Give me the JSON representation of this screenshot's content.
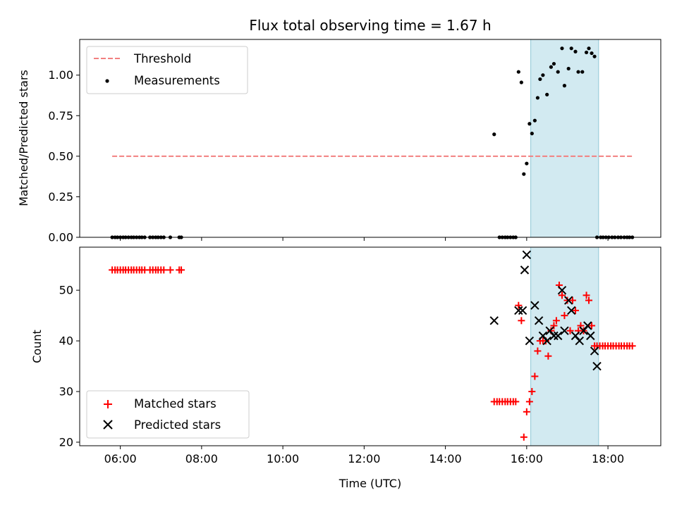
{
  "chart_data": [
    {
      "panel": "top",
      "type": "scatter",
      "title": "Flux total observing time = 1.67 h",
      "ylabel": "Matched/Predicted stars",
      "ylim": [
        0,
        1.22
      ],
      "yticks": [
        "0.00",
        "0.25",
        "0.50",
        "0.75",
        "1.00"
      ],
      "ytick_values": [
        0,
        0.25,
        0.5,
        0.75,
        1.0
      ],
      "threshold": {
        "name": "Threshold",
        "value": 0.5,
        "x_start": 5.8,
        "x_end": 18.6,
        "color": "#f28080"
      },
      "shaded_span": {
        "x_start": 16.1,
        "x_end": 17.77,
        "color": "#add8e6"
      },
      "legend": [
        "Threshold",
        "Measurements"
      ],
      "legend_placement": "upper-left",
      "series": [
        {
          "name": "Measurements",
          "color": "#000000",
          "x": [
            5.8,
            5.87,
            5.93,
            6.0,
            6.07,
            6.13,
            6.2,
            6.27,
            6.33,
            6.4,
            6.47,
            6.53,
            6.6,
            6.73,
            6.8,
            6.87,
            6.93,
            7.0,
            7.07,
            7.23,
            7.45,
            7.5,
            15.2,
            15.33,
            15.4,
            15.47,
            15.53,
            15.6,
            15.67,
            15.73,
            15.8,
            15.87,
            15.93,
            16.0,
            16.07,
            16.13,
            16.2,
            16.27,
            16.33,
            16.4,
            16.5,
            16.6,
            16.67,
            16.77,
            16.87,
            16.93,
            17.03,
            17.1,
            17.2,
            17.27,
            17.37,
            17.47,
            17.53,
            17.6,
            17.67,
            17.73,
            17.82,
            17.88,
            17.95,
            18.02,
            18.1,
            18.17,
            18.25,
            18.32,
            18.4,
            18.47,
            18.53,
            18.6
          ],
          "y": [
            0,
            0,
            0,
            0,
            0,
            0,
            0,
            0,
            0,
            0,
            0,
            0,
            0,
            0,
            0,
            0,
            0,
            0,
            0,
            0,
            0,
            0,
            0.635,
            0,
            0,
            0,
            0,
            0,
            0,
            0,
            1.02,
            0.955,
            0.39,
            0.455,
            0.7,
            0.64,
            0.72,
            0.86,
            0.975,
            1.0,
            0.88,
            1.05,
            1.07,
            1.02,
            1.165,
            0.935,
            1.04,
            1.165,
            1.145,
            1.02,
            1.02,
            1.14,
            1.165,
            1.135,
            1.115,
            0,
            0,
            0,
            0,
            0,
            0,
            0,
            0,
            0,
            0,
            0,
            0,
            0
          ]
        }
      ]
    },
    {
      "panel": "bottom",
      "type": "scatter",
      "xlabel": "Time (UTC)",
      "ylabel": "Count",
      "ylim": [
        19.3,
        58.5
      ],
      "yticks": [
        "20",
        "30",
        "40",
        "50"
      ],
      "ytick_values": [
        20,
        30,
        40,
        50
      ],
      "xlim": [
        5.0,
        19.3
      ],
      "xticks": [
        "06:00",
        "08:00",
        "10:00",
        "12:00",
        "14:00",
        "16:00",
        "18:00"
      ],
      "xtick_values": [
        6,
        8,
        10,
        12,
        14,
        16,
        18
      ],
      "shaded_span": {
        "x_start": 16.1,
        "x_end": 17.77,
        "color": "#add8e6"
      },
      "legend": [
        "Matched stars",
        "Predicted stars"
      ],
      "legend_placement": "lower-left",
      "series": [
        {
          "name": "Matched stars",
          "marker": "plus",
          "color": "#ff0000",
          "x": [
            5.8,
            5.87,
            5.93,
            6.0,
            6.07,
            6.13,
            6.2,
            6.27,
            6.33,
            6.4,
            6.47,
            6.53,
            6.6,
            6.73,
            6.8,
            6.87,
            6.93,
            7.0,
            7.07,
            7.23,
            7.45,
            7.5,
            15.2,
            15.27,
            15.33,
            15.4,
            15.47,
            15.53,
            15.6,
            15.67,
            15.73,
            15.8,
            15.87,
            15.93,
            16.0,
            16.07,
            16.13,
            16.2,
            16.27,
            16.33,
            16.4,
            16.47,
            16.53,
            16.6,
            16.67,
            16.73,
            16.8,
            16.87,
            16.93,
            17.0,
            17.07,
            17.13,
            17.2,
            17.27,
            17.33,
            17.4,
            17.47,
            17.53,
            17.6,
            17.67,
            17.73,
            17.8,
            17.87,
            17.93,
            18.0,
            18.07,
            18.13,
            18.2,
            18.27,
            18.33,
            18.4,
            18.47,
            18.53,
            18.6
          ],
          "y": [
            54,
            54,
            54,
            54,
            54,
            54,
            54,
            54,
            54,
            54,
            54,
            54,
            54,
            54,
            54,
            54,
            54,
            54,
            54,
            54,
            54,
            54,
            28,
            28,
            28,
            28,
            28,
            28,
            28,
            28,
            28,
            47,
            44,
            21,
            26,
            28,
            30,
            33,
            38,
            40,
            40,
            40,
            37,
            42,
            43,
            44,
            51,
            49,
            45,
            48,
            42,
            48,
            46,
            42,
            43,
            42,
            49,
            48,
            43,
            39,
            39,
            39,
            39,
            39,
            39,
            39,
            39,
            39,
            39,
            39,
            39,
            39,
            39,
            39
          ]
        },
        {
          "name": "Predicted stars",
          "marker": "x",
          "color": "#000000",
          "x": [
            15.2,
            15.8,
            15.9,
            15.95,
            16.0,
            16.07,
            16.2,
            16.3,
            16.4,
            16.5,
            16.57,
            16.67,
            16.77,
            16.87,
            16.93,
            17.03,
            17.1,
            17.2,
            17.3,
            17.4,
            17.5,
            17.57,
            17.67,
            17.73
          ],
          "y": [
            44,
            46,
            46,
            54,
            57,
            40,
            47,
            44,
            41,
            40,
            42,
            41,
            41,
            50,
            42,
            48,
            46,
            41,
            40,
            42,
            43,
            41,
            38,
            35
          ]
        }
      ]
    }
  ]
}
